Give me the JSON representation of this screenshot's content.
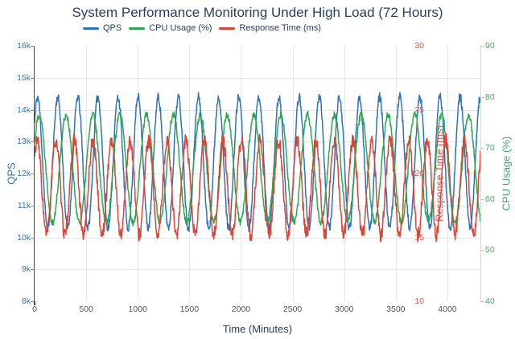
{
  "chart_data": {
    "type": "line",
    "title": "System Performance Monitoring Under High Load (72 Hours)",
    "xlabel": "Time (Minutes)",
    "x_range_minutes": [
      0,
      4320
    ],
    "x_ticks": [
      0,
      500,
      1000,
      1500,
      2000,
      2500,
      3000,
      3500,
      4000
    ],
    "grid": true,
    "legend_position": "top-center",
    "colors": {
      "title_text": "#2a3f5f",
      "x_tick_text": "#555555",
      "gridline": "#e7e7e7",
      "left_axis_line": "#444444"
    },
    "axes": [
      {
        "id": "qps",
        "label": "QPS",
        "side": "left",
        "range": [
          8000,
          16000
        ],
        "tick_values": [
          8000,
          9000,
          10000,
          11000,
          12000,
          13000,
          14000,
          15000,
          16000
        ],
        "tick_labels": [
          "8k",
          "9k",
          "10k",
          "11k",
          "12k",
          "13k",
          "14k",
          "15k",
          "16k"
        ],
        "color": "#3575b5"
      },
      {
        "id": "rt",
        "label": "Response Time (ms)",
        "side": "right-inner",
        "range": [
          10,
          30
        ],
        "tick_values": [
          10,
          15,
          20,
          25,
          30
        ],
        "tick_labels": [
          "10",
          "15",
          "20",
          "25",
          "30"
        ],
        "color": "#e0584c"
      },
      {
        "id": "cpu",
        "label": "CPU Usage (%)",
        "side": "right",
        "range": [
          40,
          90
        ],
        "tick_values": [
          40,
          50,
          60,
          70,
          80,
          90
        ],
        "tick_labels": [
          "40",
          "50",
          "60",
          "70",
          "80",
          "90"
        ],
        "color": "#3fae68"
      }
    ],
    "series": [
      {
        "name": "QPS",
        "axis": "qps",
        "color": "#2e73b8",
        "pattern": "sinusoid_plus_noise",
        "baseline": 12350,
        "amplitude": 2050,
        "period_minutes": 195,
        "phase_minutes": 20,
        "noise_amplitude": 140,
        "observed_min": 10250,
        "observed_max": 14550,
        "seed": 11
      },
      {
        "name": "CPU Usage (%)",
        "axis": "cpu",
        "color": "#2ca94f",
        "pattern": "sinusoid_plus_noise",
        "baseline": 66,
        "amplitude": 10.5,
        "period_minutes": 260,
        "phase_minutes": 20,
        "noise_amplitude": 0.75,
        "observed_min": 55,
        "observed_max": 77.5,
        "seed": 22
      },
      {
        "name": "Response Time (ms)",
        "axis": "rt",
        "color": "#dc4437",
        "pattern": "sinusoid_plus_noise",
        "baseline": 18.9,
        "amplitude": 3.7,
        "period_minutes": 180,
        "phase_minutes": 20,
        "noise_amplitude": 0.55,
        "observed_min": 14.6,
        "observed_max": 23.2,
        "seed": 33
      }
    ],
    "sample_step_minutes": 4
  }
}
